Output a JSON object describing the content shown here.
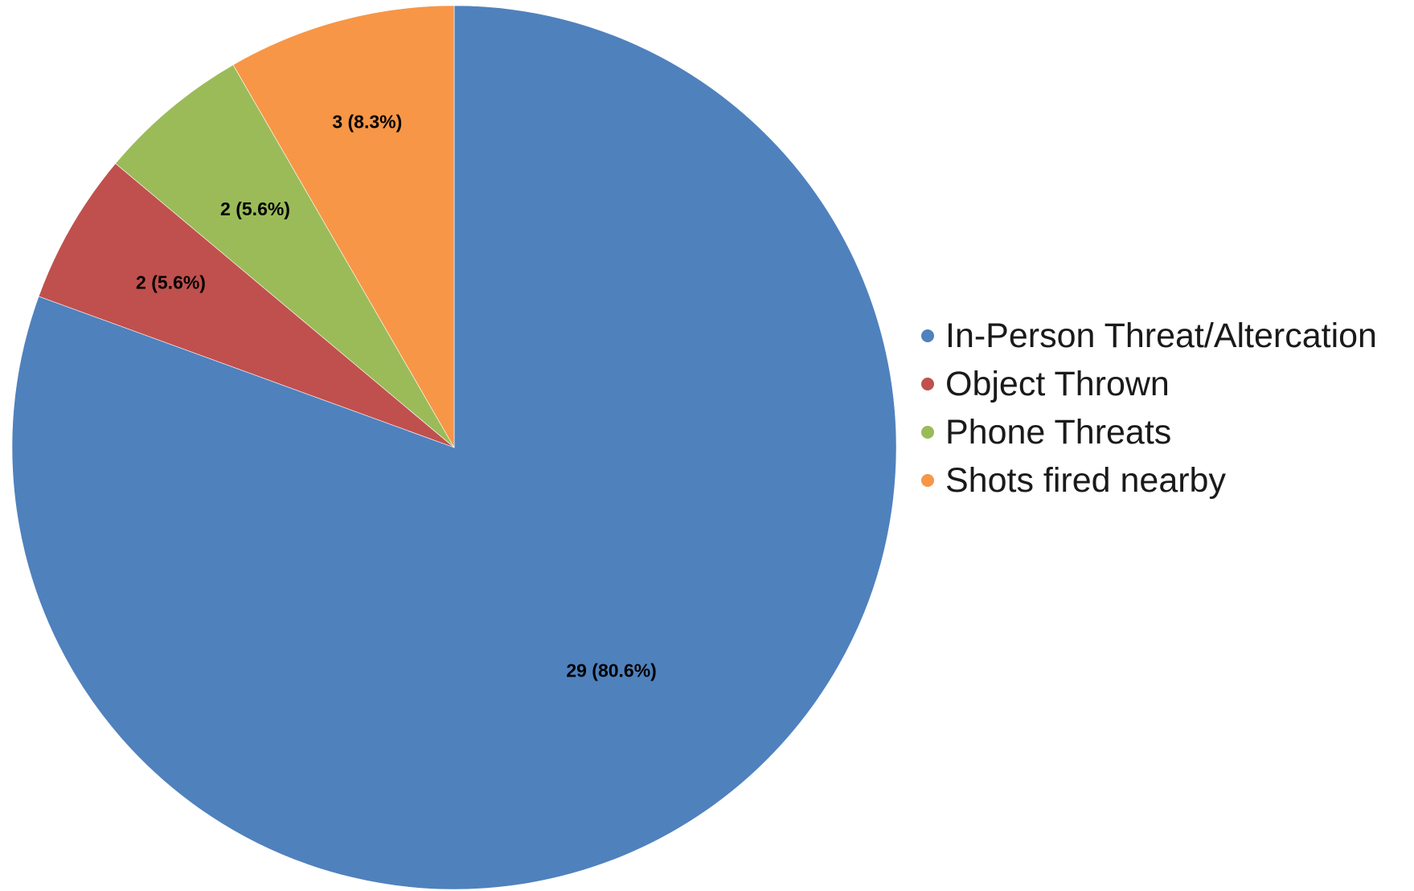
{
  "chart_data": {
    "type": "pie",
    "title": "",
    "categories": [
      "In-Person Threat/Altercation",
      "Object Thrown",
      "Phone Threats",
      "Shots fired nearby"
    ],
    "values": [
      29,
      2,
      2,
      3
    ],
    "percentages": [
      80.6,
      5.6,
      5.6,
      8.3
    ],
    "data_labels": [
      "29 (80.6%)",
      "2 (5.6%)",
      "2 (5.6%)",
      "3 (8.3%)"
    ],
    "colors": [
      "#4f81bd",
      "#c0504d",
      "#9bbb59",
      "#f79646"
    ],
    "start_angle_deg": 0,
    "direction": "clockwise",
    "legend_position": "right"
  }
}
